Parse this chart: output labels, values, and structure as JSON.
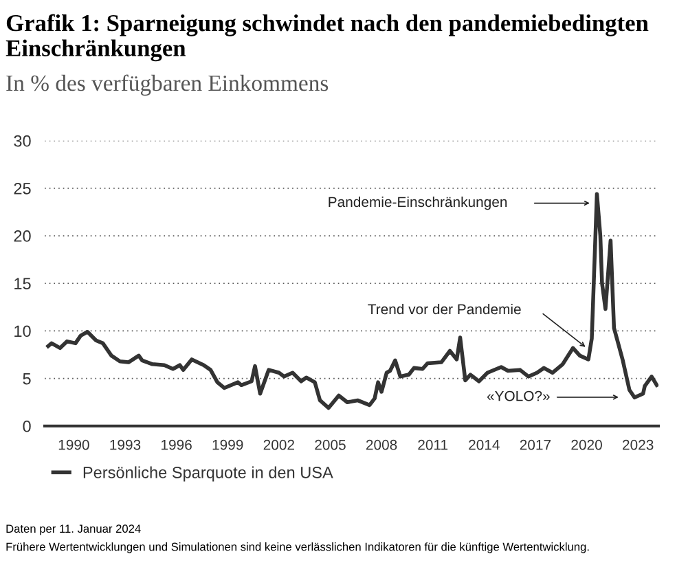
{
  "chart_data": {
    "type": "line",
    "title": "Grafik 1: Sparneigung schwindet nach den pandemiebedingten Einschränkungen",
    "subtitle": "In % des verfügbaren Einkommens",
    "series": [
      {
        "name": "Persönliche Sparquote in den USA",
        "color": "#333333",
        "x": [
          1988.5,
          1988.7,
          1989.2,
          1989.6,
          1990.1,
          1990.4,
          1990.8,
          1991.3,
          1991.7,
          1992.2,
          1992.7,
          1993.2,
          1993.8,
          1994.0,
          1994.6,
          1995.3,
          1995.8,
          1996.2,
          1996.4,
          1996.9,
          1997.6,
          1998.0,
          1998.4,
          1998.8,
          1999.6,
          1999.8,
          2000.4,
          2000.6,
          2000.9,
          2001.4,
          2002.0,
          2002.3,
          2002.8,
          2003.3,
          2003.6,
          2004.1,
          2004.4,
          2004.9,
          2005.5,
          2006.0,
          2006.6,
          2007.3,
          2007.6,
          2007.8,
          2008.0,
          2008.3,
          2008.5,
          2008.8,
          2009.1,
          2009.6,
          2009.9,
          2010.4,
          2010.7,
          2011.5,
          2012.0,
          2012.4,
          2012.6,
          2012.9,
          2013.2,
          2013.7,
          2014.2,
          2015.0,
          2015.4,
          2016.1,
          2016.6,
          2017.1,
          2017.5,
          2018.0,
          2018.6,
          2019.2,
          2019.6,
          2020.1,
          2020.3,
          2020.6,
          2020.8,
          2020.9,
          2021.1,
          2021.4,
          2021.6,
          2022.1,
          2022.5,
          2022.8,
          2023.3,
          2023.4,
          2023.8,
          2024.1
        ],
        "values": [
          8.4,
          8.7,
          8.2,
          8.9,
          8.7,
          9.5,
          9.9,
          9.0,
          8.7,
          7.4,
          6.8,
          6.7,
          7.4,
          6.9,
          6.5,
          6.4,
          6.0,
          6.4,
          5.9,
          7.0,
          6.4,
          5.9,
          4.6,
          4.0,
          4.6,
          4.3,
          4.7,
          6.3,
          3.4,
          5.9,
          5.6,
          5.2,
          5.6,
          4.7,
          5.1,
          4.6,
          2.7,
          1.9,
          3.2,
          2.5,
          2.7,
          2.2,
          2.9,
          4.6,
          3.6,
          5.6,
          5.8,
          6.9,
          5.2,
          5.4,
          6.1,
          6.0,
          6.6,
          6.7,
          7.9,
          7.0,
          9.3,
          4.8,
          5.4,
          4.7,
          5.6,
          6.2,
          5.8,
          5.9,
          5.2,
          5.6,
          6.1,
          5.6,
          6.5,
          8.2,
          7.4,
          7.0,
          9.2,
          24.4,
          20.0,
          15.0,
          12.3,
          19.5,
          10.3,
          7.0,
          3.8,
          3.0,
          3.4,
          4.2,
          5.2,
          4.3
        ]
      }
    ],
    "xlim": [
      1988.3,
      2024.2
    ],
    "xticks": [
      1990,
      1993,
      1996,
      1999,
      2002,
      2005,
      2008,
      2011,
      2014,
      2017,
      2020,
      2023
    ],
    "ylim": [
      0,
      30
    ],
    "yticks": [
      0,
      5,
      10,
      15,
      20,
      25,
      30
    ],
    "grid": "y",
    "legend": "bottom left",
    "line_style": "solid",
    "marker": "none",
    "annotations": [
      "Pandemie-Einschränkungen",
      "Trend vor der Pandemie",
      "«YOLO?»",
      "Daten per 11. Januar 2024",
      "Frühere Wertentwicklungen und Simulationen sind keine verlässlichen Indikatoren für die künftige Wertentwicklung."
    ]
  }
}
